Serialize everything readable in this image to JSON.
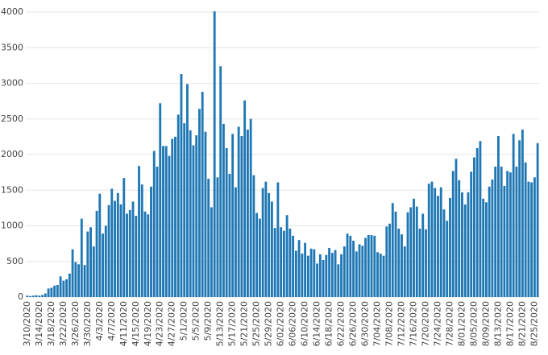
{
  "chart_data": {
    "type": "bar",
    "categories": [
      "3/10/2020",
      null,
      null,
      null,
      "3/14/2020",
      null,
      null,
      null,
      "3/18/2020",
      null,
      null,
      null,
      "3/22/2020",
      null,
      null,
      null,
      "3/26/2020",
      null,
      null,
      null,
      "3/30/2020",
      null,
      null,
      null,
      "4/3/2020",
      null,
      null,
      null,
      "4/7/2020",
      null,
      null,
      null,
      "4/11/2020",
      null,
      null,
      null,
      "4/15/2020",
      null,
      null,
      null,
      "4/19/2020",
      null,
      null,
      null,
      "4/23/2020",
      null,
      null,
      null,
      "4/27/2020",
      null,
      null,
      null,
      "5/1/2020",
      null,
      null,
      null,
      "5/5/2020",
      null,
      null,
      null,
      "5/9/2020",
      null,
      null,
      null,
      "5/13/2020",
      null,
      null,
      null,
      "5/17/2020",
      null,
      null,
      null,
      "5/21/2020",
      null,
      null,
      null,
      "5/25/2020",
      null,
      null,
      null,
      "5/29/2020",
      null,
      null,
      null,
      "6/02/2020",
      null,
      null,
      null,
      "6/06/2020",
      null,
      null,
      null,
      "6/10/2020",
      null,
      null,
      null,
      "6/14/2020",
      null,
      null,
      null,
      "6/18/2020",
      null,
      null,
      null,
      "6/22/2020",
      null,
      null,
      null,
      "6/26/2020",
      null,
      null,
      null,
      "6/30/2020",
      null,
      null,
      null,
      "7/04/2020",
      null,
      null,
      null,
      "7/08/2020",
      null,
      null,
      null,
      "7/12/2020",
      null,
      null,
      null,
      "7/16/2020",
      null,
      null,
      null,
      "7/20/2020",
      null,
      null,
      null,
      "7/24/2020",
      null,
      null,
      null,
      "7/28/2020",
      null,
      null,
      null,
      "8/01/2020",
      null,
      null,
      null,
      "8/05/2020",
      null,
      null,
      null,
      "8/09/2020",
      null,
      null,
      null,
      "8/13/2020",
      null,
      null,
      null,
      "8/17/2020",
      null,
      null,
      null,
      "8/21/2020",
      null,
      null,
      null,
      "8/25/2020",
      null
    ],
    "values": [
      20,
      15,
      20,
      25,
      20,
      30,
      50,
      120,
      130,
      160,
      170,
      290,
      230,
      250,
      330,
      670,
      490,
      460,
      1100,
      450,
      920,
      980,
      710,
      1210,
      1450,
      890,
      1000,
      1290,
      1520,
      1350,
      1460,
      1300,
      1670,
      1170,
      1220,
      1340,
      1140,
      1840,
      1580,
      1200,
      1160,
      1550,
      2050,
      1830,
      2720,
      2120,
      2120,
      1980,
      2220,
      2250,
      2560,
      3130,
      2440,
      2990,
      2340,
      2130,
      2270,
      2640,
      2880,
      2320,
      1660,
      1260,
      4010,
      1680,
      3240,
      2430,
      2090,
      1730,
      2290,
      1540,
      2390,
      2260,
      2760,
      2350,
      2500,
      1710,
      1180,
      1100,
      1530,
      1620,
      1460,
      1340,
      970,
      1610,
      980,
      930,
      1150,
      960,
      860,
      650,
      800,
      610,
      760,
      580,
      680,
      670,
      470,
      600,
      520,
      590,
      690,
      620,
      660,
      460,
      600,
      710,
      890,
      860,
      790,
      640,
      740,
      720,
      830,
      870,
      870,
      860,
      630,
      610,
      580,
      990,
      1030,
      1320,
      1200,
      960,
      880,
      710,
      1190,
      1260,
      1380,
      1270,
      960,
      1170,
      950,
      1590,
      1620,
      1530,
      1420,
      1540,
      1230,
      1070,
      1390,
      1770,
      1940,
      1640,
      1470,
      1300,
      1470,
      1760,
      1960,
      2090,
      2190,
      1380,
      1330,
      1550,
      1650,
      1830,
      2260,
      1830,
      1560,
      1770,
      1750,
      2290,
      1830,
      2200,
      2350,
      1890,
      1620,
      1610,
      1680,
      2160
    ],
    "color": "#1f77b4",
    "ylim": [
      0,
      4000
    ],
    "yticks": [
      0,
      500,
      1000,
      1500,
      2000,
      2500,
      3000,
      3500,
      4000
    ],
    "grid": true
  }
}
